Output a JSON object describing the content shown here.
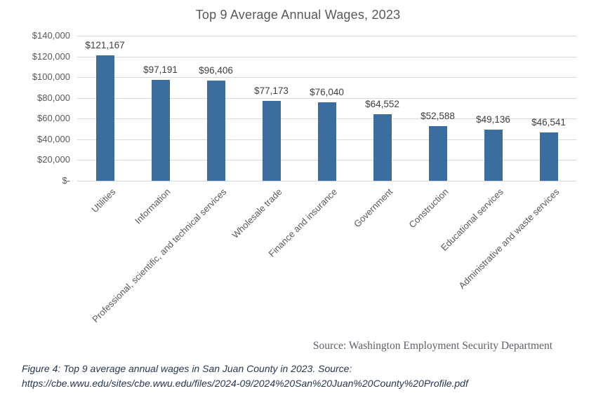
{
  "chart_data": {
    "type": "bar",
    "title": "Top 9 Average Annual Wages, 2023",
    "categories": [
      "Utilities",
      "Information",
      "Professional, scientific, and technical services",
      "Wholesale trade",
      "Finance and insurance",
      "Government",
      "Construction",
      "Educational services",
      "Administrative and waste services"
    ],
    "values": [
      121167,
      97191,
      96406,
      77173,
      76040,
      64552,
      52588,
      49136,
      46541
    ],
    "value_labels": [
      "$121,167",
      "$97,191",
      "$96,406",
      "$77,173",
      "$76,040",
      "$64,552",
      "$52,588",
      "$49,136",
      "$46,541"
    ],
    "y_ticks": [
      {
        "label": "$140,000",
        "value": 140000
      },
      {
        "label": "$120,000",
        "value": 120000
      },
      {
        "label": "$100,000",
        "value": 100000
      },
      {
        "label": "$80,000",
        "value": 80000
      },
      {
        "label": "$60,000",
        "value": 60000
      },
      {
        "label": "$40,000",
        "value": 40000
      },
      {
        "label": "$20,000",
        "value": 20000
      },
      {
        "label": "$-",
        "value": 0
      }
    ],
    "ylim": [
      0,
      140000
    ],
    "grid": true,
    "legend": "none",
    "xlabel": "",
    "ylabel": "",
    "colors": {
      "bar": "#3c6d9f",
      "gridline": "#d9d9d9",
      "title_text": "#595959",
      "axis_text": "#595959",
      "data_label_text": "#3f3f3f",
      "source_text": "#5e6066",
      "caption_text": "#263852"
    }
  },
  "source_note": "Source: Washington Employment Security Department",
  "caption": {
    "line1": "Figure 4: Top 9 average annual wages in San Juan County in 2023. Source:",
    "line2": "https://cbe.wwu.edu/sites/cbe.wwu.edu/files/2024-09/2024%20San%20Juan%20County%20Profile.pdf"
  }
}
